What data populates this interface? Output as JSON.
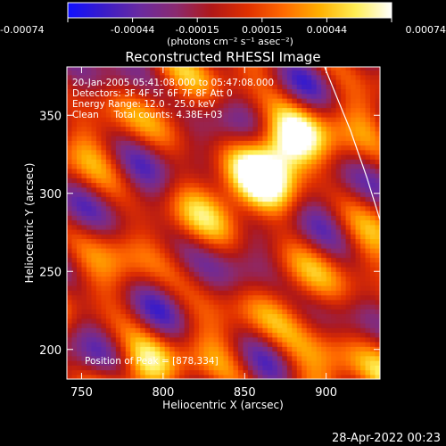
{
  "colorbar": {
    "ticks": [
      "-0.00074",
      "-0.00044",
      "-0.00015",
      "0.00015",
      "0.00044",
      "0.00074"
    ],
    "unit_label": "(photons cm⁻² s⁻¹ asec⁻²)",
    "colors": [
      "#1010ff",
      "#3a1cc8",
      "#6a2aa0",
      "#8a2a70",
      "#b01818",
      "#e03000",
      "#ff6a00",
      "#ffb000",
      "#ffee55",
      "#ffffff"
    ]
  },
  "chart_data": {
    "type": "heatmap",
    "title": "Reconstructed RHESSI Image",
    "xlabel": "Heliocentric X (arcsec)",
    "ylabel": "Heliocentric Y (arcsec)",
    "xlim": [
      741,
      933
    ],
    "ylim": [
      181,
      381
    ],
    "x_ticks": [
      750,
      800,
      850,
      900
    ],
    "y_ticks": [
      200,
      250,
      300,
      350
    ],
    "clim": [
      -0.00074,
      0.00074
    ],
    "peak": [
      878,
      334
    ],
    "limb_curve": [
      [
        899,
        381
      ],
      [
        915,
        340
      ],
      [
        925,
        310
      ],
      [
        933,
        283
      ]
    ],
    "annotations": [
      "20-Jan-2005 05:41:08.000 to 05:47:08.000",
      "Detectors: 3F 4F 5F 6F 7F 8F Att 0",
      "Energy Range: 12.0 - 25.0 keV",
      "Clean     Total counts: 4.38E+03",
      "Position of Peak = [878,334]"
    ]
  },
  "timestamp": "28-Apr-2022 00:23"
}
